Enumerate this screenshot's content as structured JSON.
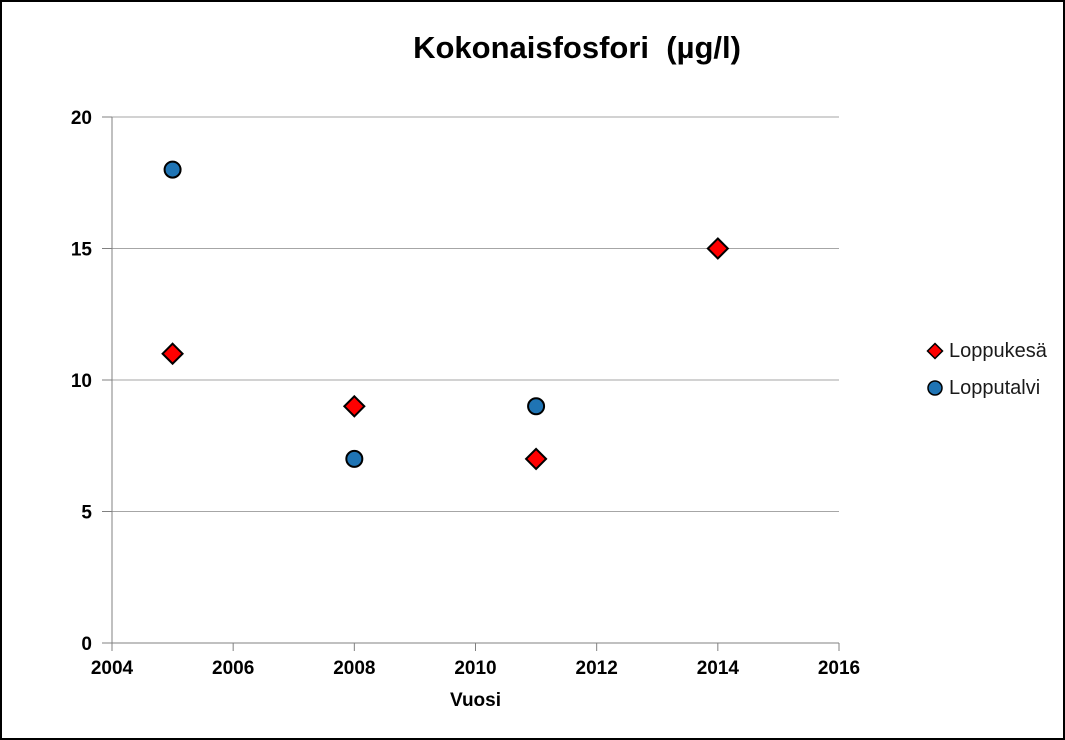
{
  "chart_data": {
    "type": "scatter",
    "title": "Kokonaisfosfori  (µg/l)",
    "xlabel": "Vuosi",
    "ylabel": "",
    "xlim": [
      2004,
      2016
    ],
    "ylim": [
      0,
      20
    ],
    "xticks": [
      2004,
      2006,
      2008,
      2010,
      2012,
      2014,
      2016
    ],
    "yticks": [
      0,
      5,
      10,
      15,
      20
    ],
    "grid": "horizontal-only",
    "legend_position": "right",
    "series": [
      {
        "name": "Loppukesä",
        "marker": "diamond",
        "color": "#ff0000",
        "points": [
          [
            2005,
            11
          ],
          [
            2008,
            9
          ],
          [
            2011,
            7
          ],
          [
            2014,
            15
          ]
        ]
      },
      {
        "name": "Lopputalvi",
        "marker": "circle",
        "color": "#1f74b4",
        "points": [
          [
            2005,
            18
          ],
          [
            2008,
            7
          ],
          [
            2011,
            9
          ]
        ]
      }
    ]
  },
  "colors": {
    "gridline": "#a6a6a6",
    "axis": "#808080",
    "marker_outline": "#000000",
    "text": "#000000"
  }
}
